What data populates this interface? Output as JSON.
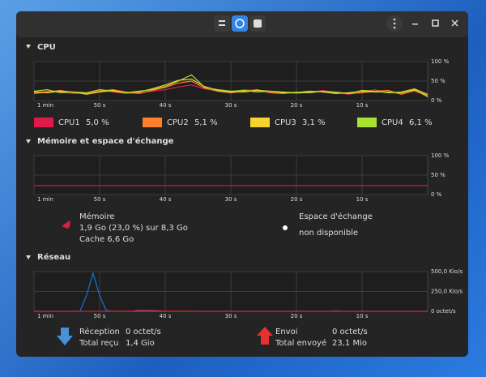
{
  "cpu": {
    "title": "CPU",
    "chart": {
      "type": "line",
      "x": [
        60,
        58,
        56,
        54,
        52,
        50,
        48,
        46,
        44,
        42,
        40,
        38,
        36,
        34,
        32,
        30,
        28,
        26,
        24,
        22,
        20,
        18,
        16,
        14,
        12,
        10,
        8,
        6,
        4,
        2,
        0
      ],
      "xlim": [
        60,
        0
      ],
      "xticks": [
        {
          "value": 60,
          "label": "1 min"
        },
        {
          "value": 50,
          "label": "50 s"
        },
        {
          "value": 40,
          "label": "40 s"
        },
        {
          "value": 30,
          "label": "30 s"
        },
        {
          "value": 20,
          "label": "20 s"
        },
        {
          "value": 10,
          "label": "10 s"
        }
      ],
      "ylim": [
        0,
        100
      ],
      "yticks": [
        {
          "value": 100,
          "label": "100 %"
        },
        {
          "value": 50,
          "label": "50 %"
        },
        {
          "value": 0,
          "label": "0 %"
        }
      ],
      "grid": true,
      "series": [
        {
          "name": "CPU1",
          "current": "5,0 %",
          "color": "#e01b4c",
          "values": [
            20,
            25,
            22,
            18,
            20,
            26,
            22,
            18,
            20,
            24,
            28,
            35,
            40,
            30,
            25,
            22,
            28,
            25,
            22,
            20,
            18,
            22,
            26,
            20,
            16,
            22,
            28,
            20,
            18,
            24,
            12
          ]
        },
        {
          "name": "CPU2",
          "current": "5,1 %",
          "color": "#ff7f2a",
          "values": [
            18,
            22,
            26,
            20,
            18,
            24,
            28,
            22,
            18,
            26,
            34,
            45,
            50,
            32,
            24,
            20,
            24,
            28,
            20,
            18,
            22,
            20,
            24,
            22,
            18,
            20,
            24,
            26,
            16,
            26,
            14
          ]
        },
        {
          "name": "CPU3",
          "current": "3,1 %",
          "color": "#f6d32d",
          "values": [
            22,
            20,
            24,
            22,
            16,
            22,
            26,
            20,
            22,
            30,
            40,
            52,
            55,
            36,
            26,
            22,
            22,
            26,
            24,
            20,
            20,
            24,
            22,
            18,
            20,
            24,
            22,
            22,
            20,
            28,
            10
          ]
        },
        {
          "name": "CPU4",
          "current": "6,1 %",
          "color": "#a6e22e",
          "values": [
            24,
            28,
            20,
            22,
            20,
            28,
            24,
            20,
            24,
            28,
            36,
            50,
            66,
            34,
            28,
            24,
            26,
            22,
            24,
            22,
            20,
            20,
            24,
            20,
            18,
            26,
            24,
            20,
            22,
            30,
            16
          ]
        }
      ]
    }
  },
  "memory": {
    "title": "Mémoire et espace d'échange",
    "chart": {
      "type": "line",
      "x": [
        60,
        0
      ],
      "xlim": [
        60,
        0
      ],
      "xticks": [
        {
          "value": 60,
          "label": "1 min"
        },
        {
          "value": 50,
          "label": "50 s"
        },
        {
          "value": 40,
          "label": "40 s"
        },
        {
          "value": 30,
          "label": "30 s"
        },
        {
          "value": 20,
          "label": "20 s"
        },
        {
          "value": 10,
          "label": "10 s"
        }
      ],
      "ylim": [
        0,
        100
      ],
      "yticks": [
        {
          "value": 100,
          "label": "100 %"
        },
        {
          "value": 50,
          "label": "50 %"
        },
        {
          "value": 0,
          "label": "0 %"
        }
      ],
      "grid": true,
      "series": [
        {
          "name": "Mémoire",
          "color": "#e01b4c",
          "values": [
            23,
            23
          ]
        }
      ]
    },
    "usage": "1,9 Go (23,0 %) sur 8,3 Go",
    "cache": "Cache 6,6 Go",
    "swap": {
      "label": "Espace d'échange",
      "status": "non disponible"
    }
  },
  "network": {
    "title": "Réseau",
    "chart": {
      "type": "line",
      "x": [
        60,
        56,
        53,
        52,
        51,
        50,
        49,
        48,
        45,
        44,
        42,
        40,
        35,
        30,
        20,
        15,
        14,
        13,
        10,
        0
      ],
      "xlim": [
        60,
        0
      ],
      "xticks": [
        {
          "value": 60,
          "label": "1 min"
        },
        {
          "value": 50,
          "label": "50 s"
        },
        {
          "value": 40,
          "label": "40 s"
        },
        {
          "value": 30,
          "label": "30 s"
        },
        {
          "value": 20,
          "label": "20 s"
        },
        {
          "value": 10,
          "label": "10 s"
        }
      ],
      "ylim": [
        0,
        500
      ],
      "yticks": [
        {
          "value": 500,
          "label": "500,0 Kio/s"
        },
        {
          "value": 250,
          "label": "250,0 Kio/s"
        },
        {
          "value": 0,
          "label": "0 octet/s"
        }
      ],
      "grid": true,
      "series": [
        {
          "name": "Réception",
          "color": "#1c71d8",
          "rate": "0 octet/s",
          "total_label": "Total reçu",
          "total": "1,4 Gio",
          "values": [
            0,
            0,
            0,
            200,
            480,
            200,
            10,
            0,
            0,
            0,
            0,
            0,
            0,
            0,
            0,
            0,
            6,
            0,
            0,
            0
          ]
        },
        {
          "name": "Envoi",
          "color": "#e01b24",
          "rate": "0 octet/s",
          "total_label": "Total envoyé",
          "total": "23,1 Mio",
          "values": [
            0,
            0,
            0,
            0,
            0,
            0,
            0,
            0,
            3,
            15,
            12,
            3,
            0,
            0,
            0,
            0,
            0,
            0,
            0,
            0
          ]
        }
      ]
    }
  }
}
